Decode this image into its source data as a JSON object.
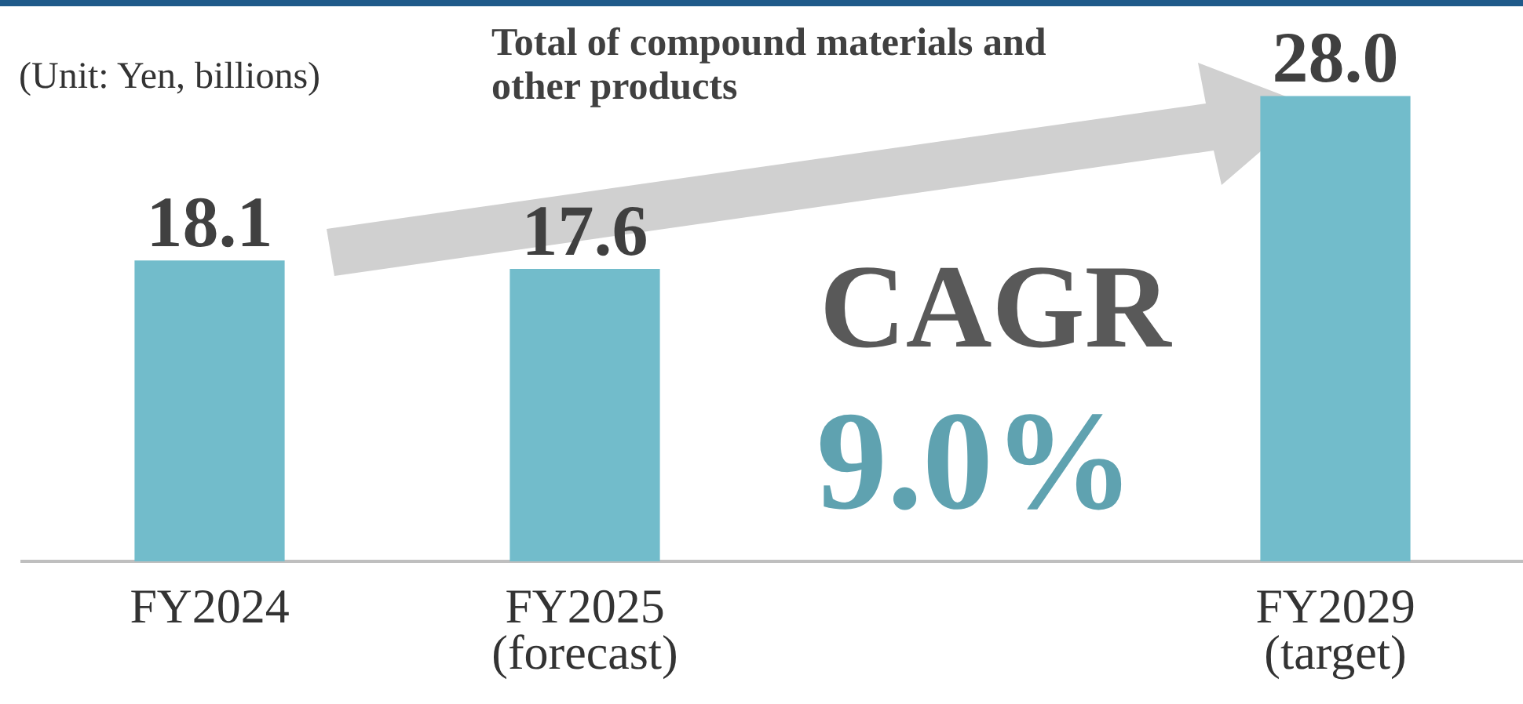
{
  "chart_data": {
    "type": "bar",
    "categories": [
      "FY2024",
      "FY2025\n(forecast)",
      null,
      "FY2029\n(target)"
    ],
    "values": [
      18.1,
      17.6,
      null,
      28.0
    ],
    "color": "#72bccb",
    "value_labels": [
      "18.1",
      "17.6",
      null,
      "28.0"
    ],
    "annotations": [
      "(Unit: Yen, billions)",
      "Total of compound materials and other products",
      "CAGR",
      "9.0%"
    ],
    "grid": false,
    "legend": false
  }
}
